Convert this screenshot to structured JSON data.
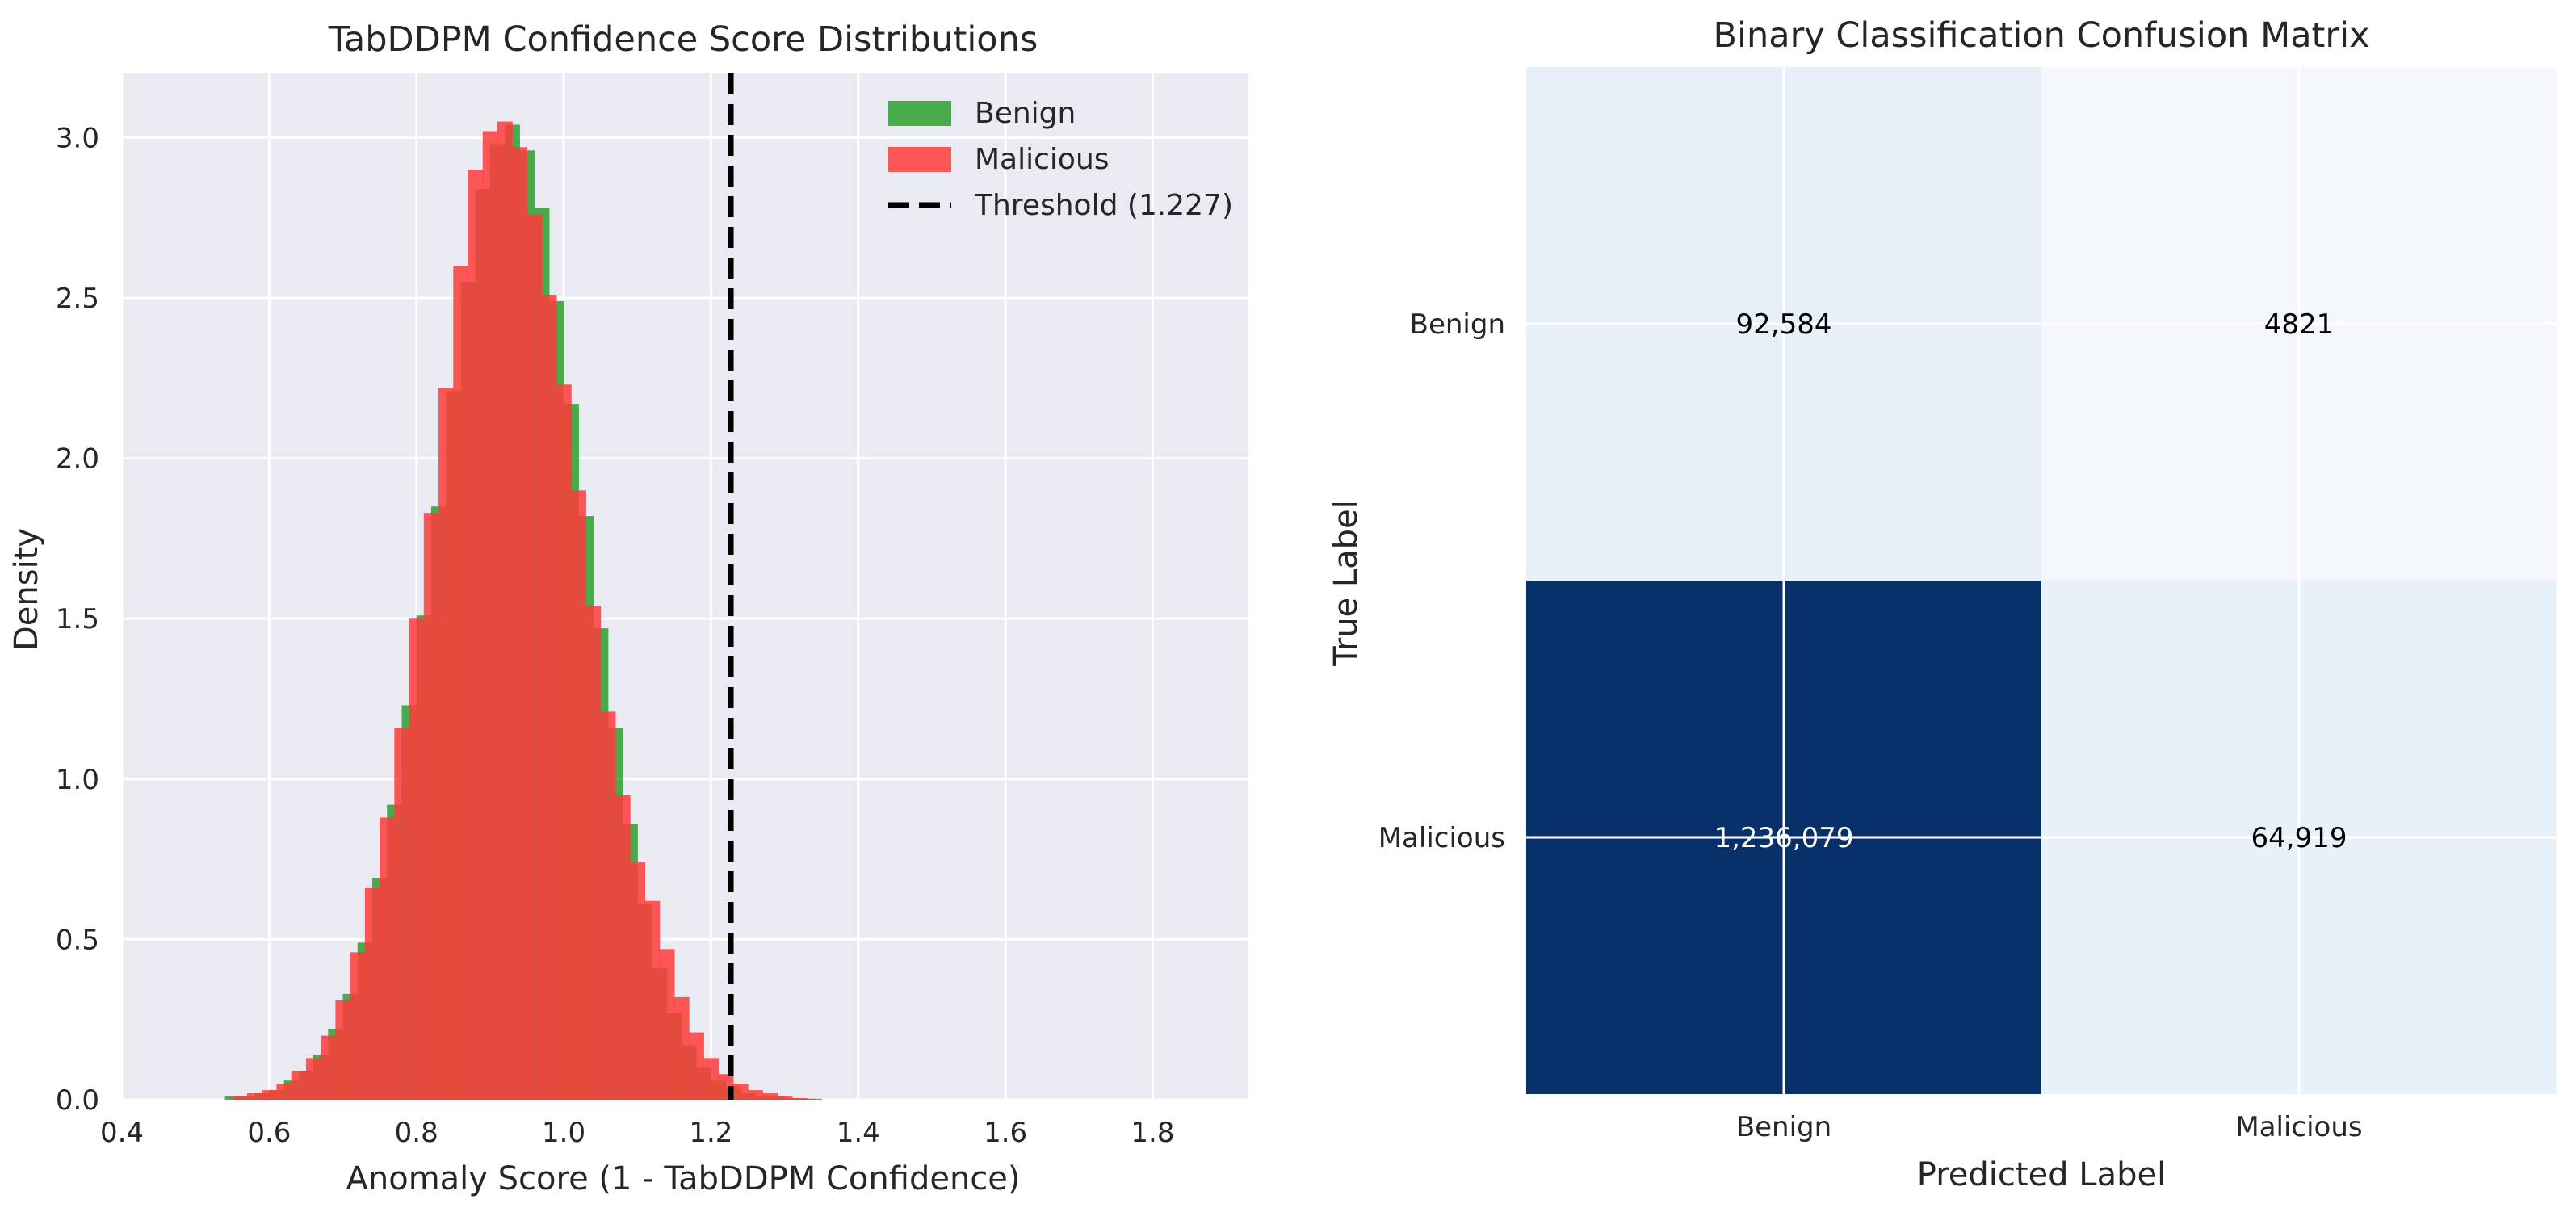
{
  "chart_data": [
    {
      "type": "histogram",
      "title": "TabDDPM Confidence Score Distributions",
      "xlabel": "Anomaly Score (1 - TabDDPM Confidence)",
      "ylabel": "Density",
      "xlim": [
        0.4,
        1.93
      ],
      "ylim": [
        0,
        3.2
      ],
      "xticks": [
        "0.4",
        "0.6",
        "0.8",
        "1.0",
        "1.2",
        "1.4",
        "1.6",
        "1.8"
      ],
      "yticks": [
        "0.0",
        "0.5",
        "1.0",
        "1.5",
        "2.0",
        "2.5",
        "3.0"
      ],
      "grid": true,
      "legend_position": "top-right",
      "threshold": {
        "value": 1.227,
        "label": "Threshold (1.227)"
      },
      "series": [
        {
          "name": "Benign",
          "color": "#2ca02c",
          "bin_start": 0.54,
          "bin_width": 0.02,
          "values": [
            0.01,
            0.01,
            0.02,
            0.03,
            0.06,
            0.09,
            0.14,
            0.22,
            0.33,
            0.49,
            0.69,
            0.92,
            1.23,
            1.51,
            1.85,
            2.21,
            2.55,
            2.84,
            2.98,
            3.04,
            2.96,
            2.78,
            2.49,
            2.17,
            1.82,
            1.47,
            1.16,
            0.86,
            0.61,
            0.41,
            0.27,
            0.17,
            0.1,
            0.06,
            0.04,
            0.02,
            0.01,
            0.01,
            0.005,
            0.003
          ]
        },
        {
          "name": "Malicious",
          "color": "#ff3b3b",
          "bin_start": 0.55,
          "bin_width": 0.02,
          "values": [
            0.01,
            0.02,
            0.03,
            0.05,
            0.09,
            0.13,
            0.2,
            0.31,
            0.46,
            0.66,
            0.88,
            1.16,
            1.5,
            1.83,
            2.22,
            2.6,
            2.9,
            3.02,
            3.05,
            2.97,
            2.76,
            2.51,
            2.23,
            1.9,
            1.54,
            1.21,
            0.95,
            0.74,
            0.62,
            0.47,
            0.32,
            0.21,
            0.13,
            0.08,
            0.05,
            0.03,
            0.02,
            0.01,
            0.005,
            0.003
          ]
        }
      ]
    },
    {
      "type": "heatmap",
      "title": "Binary Classification Confusion Matrix",
      "xlabel": "Predicted Label",
      "ylabel": "True Label",
      "x_categories": [
        "Benign",
        "Malicious"
      ],
      "y_categories": [
        "Benign",
        "Malicious"
      ],
      "values": [
        [
          92584,
          4821
        ],
        [
          1236079,
          64919
        ]
      ],
      "labels": [
        [
          "92,584",
          "4821"
        ],
        [
          "1,236,079",
          "64,919"
        ]
      ],
      "colormap": "Blues",
      "cell_colors": [
        [
          "#e7eff9",
          "#f4f8fd"
        ],
        [
          "#08306b",
          "#e8f0f9"
        ]
      ],
      "text_colors": [
        [
          "#000000",
          "#000000"
        ],
        [
          "#ffffff",
          "#000000"
        ]
      ]
    }
  ]
}
